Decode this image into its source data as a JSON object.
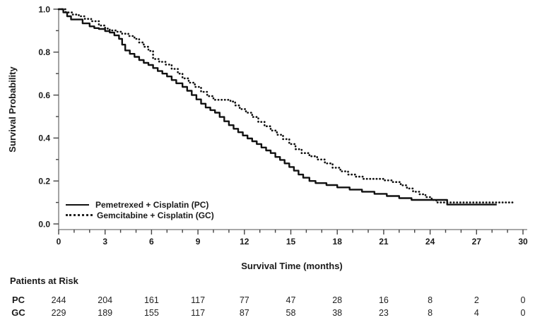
{
  "figure": {
    "background": "#ffffff",
    "text_color": "#1a1a1a",
    "axis_line_color": "#8c8c8c",
    "tick_color": "#444444",
    "curve_color": "#111111"
  },
  "chart_data": {
    "type": "line",
    "subtype": "kaplan-meier-step",
    "title": "",
    "xlabel": "Survival Time (months)",
    "ylabel": "Survival Probability",
    "xlim": [
      0,
      30
    ],
    "ylim": [
      0.0,
      1.0
    ],
    "x_major_ticks": [
      0,
      3,
      6,
      9,
      12,
      15,
      18,
      21,
      24,
      27,
      30
    ],
    "x_minor_tick_step": 1,
    "y_major_ticks": [
      0.0,
      0.2,
      0.4,
      0.6,
      0.8,
      1.0
    ],
    "y_minor_ticks": [
      0.1,
      0.3,
      0.5,
      0.7,
      0.9
    ],
    "grid": false,
    "legend_position": "inside-bottom-left",
    "series": [
      {
        "name": "Pemetrexed + Cisplatin (PC)",
        "short": "PC",
        "line_style": "solid",
        "color": "#111111",
        "step_points": [
          [
            0,
            1.0
          ],
          [
            0.3,
            0.985
          ],
          [
            0.55,
            0.967
          ],
          [
            0.8,
            0.952
          ],
          [
            1.55,
            0.934
          ],
          [
            2.0,
            0.92
          ],
          [
            2.3,
            0.912
          ],
          [
            2.6,
            0.908
          ],
          [
            3.0,
            0.898
          ],
          [
            3.3,
            0.891
          ],
          [
            3.6,
            0.878
          ],
          [
            3.9,
            0.862
          ],
          [
            4.1,
            0.835
          ],
          [
            4.3,
            0.808
          ],
          [
            4.6,
            0.792
          ],
          [
            4.9,
            0.778
          ],
          [
            5.2,
            0.763
          ],
          [
            5.5,
            0.75
          ],
          [
            5.8,
            0.74
          ],
          [
            6.1,
            0.726
          ],
          [
            6.4,
            0.712
          ],
          [
            6.7,
            0.7
          ],
          [
            7.0,
            0.687
          ],
          [
            7.3,
            0.67
          ],
          [
            7.6,
            0.655
          ],
          [
            8.0,
            0.638
          ],
          [
            8.3,
            0.62
          ],
          [
            8.6,
            0.6
          ],
          [
            8.9,
            0.58
          ],
          [
            9.2,
            0.56
          ],
          [
            9.5,
            0.542
          ],
          [
            9.8,
            0.53
          ],
          [
            10.1,
            0.518
          ],
          [
            10.4,
            0.498
          ],
          [
            10.7,
            0.478
          ],
          [
            11.0,
            0.46
          ],
          [
            11.3,
            0.443
          ],
          [
            11.6,
            0.427
          ],
          [
            11.9,
            0.412
          ],
          [
            12.2,
            0.398
          ],
          [
            12.5,
            0.385
          ],
          [
            12.8,
            0.372
          ],
          [
            13.1,
            0.356
          ],
          [
            13.4,
            0.342
          ],
          [
            13.7,
            0.33
          ],
          [
            14.0,
            0.312
          ],
          [
            14.3,
            0.298
          ],
          [
            14.6,
            0.282
          ],
          [
            14.9,
            0.265
          ],
          [
            15.2,
            0.248
          ],
          [
            15.5,
            0.23
          ],
          [
            15.8,
            0.215
          ],
          [
            16.2,
            0.2
          ],
          [
            16.6,
            0.19
          ],
          [
            17.3,
            0.181
          ],
          [
            18.0,
            0.17
          ],
          [
            18.8,
            0.16
          ],
          [
            19.6,
            0.15
          ],
          [
            20.4,
            0.14
          ],
          [
            21.2,
            0.13
          ],
          [
            22.0,
            0.12
          ],
          [
            22.8,
            0.112
          ],
          [
            25.1,
            0.09
          ],
          [
            28.3,
            0.09
          ]
        ]
      },
      {
        "name": "Gemcitabine + Cisplatin (GC)",
        "short": "GC",
        "line_style": "dotted",
        "color": "#111111",
        "step_points": [
          [
            0,
            1.0
          ],
          [
            0.45,
            0.985
          ],
          [
            0.9,
            0.975
          ],
          [
            1.3,
            0.967
          ],
          [
            1.7,
            0.955
          ],
          [
            2.1,
            0.944
          ],
          [
            2.6,
            0.924
          ],
          [
            3.0,
            0.91
          ],
          [
            3.3,
            0.901
          ],
          [
            3.7,
            0.895
          ],
          [
            4.1,
            0.886
          ],
          [
            4.5,
            0.875
          ],
          [
            4.9,
            0.862
          ],
          [
            5.2,
            0.845
          ],
          [
            5.5,
            0.825
          ],
          [
            5.8,
            0.806
          ],
          [
            6.1,
            0.768
          ],
          [
            6.5,
            0.755
          ],
          [
            6.9,
            0.742
          ],
          [
            7.3,
            0.722
          ],
          [
            7.7,
            0.7
          ],
          [
            8.0,
            0.678
          ],
          [
            8.4,
            0.658
          ],
          [
            8.8,
            0.638
          ],
          [
            9.2,
            0.615
          ],
          [
            9.6,
            0.595
          ],
          [
            10.0,
            0.578
          ],
          [
            11.1,
            0.57
          ],
          [
            11.4,
            0.552
          ],
          [
            11.7,
            0.535
          ],
          [
            12.1,
            0.518
          ],
          [
            12.5,
            0.498
          ],
          [
            12.9,
            0.475
          ],
          [
            13.3,
            0.455
          ],
          [
            13.7,
            0.435
          ],
          [
            14.1,
            0.415
          ],
          [
            14.5,
            0.395
          ],
          [
            14.9,
            0.372
          ],
          [
            15.3,
            0.348
          ],
          [
            15.7,
            0.33
          ],
          [
            16.2,
            0.315
          ],
          [
            16.7,
            0.3
          ],
          [
            17.2,
            0.282
          ],
          [
            17.7,
            0.262
          ],
          [
            18.2,
            0.245
          ],
          [
            18.7,
            0.23
          ],
          [
            19.2,
            0.22
          ],
          [
            19.7,
            0.21
          ],
          [
            21.0,
            0.203
          ],
          [
            21.6,
            0.195
          ],
          [
            22.1,
            0.18
          ],
          [
            22.5,
            0.165
          ],
          [
            22.9,
            0.15
          ],
          [
            23.3,
            0.138
          ],
          [
            23.7,
            0.125
          ],
          [
            24.1,
            0.112
          ],
          [
            24.4,
            0.1
          ],
          [
            29.4,
            0.1
          ]
        ]
      }
    ],
    "risk_table": {
      "header": "Patients at Risk",
      "months": [
        0,
        3,
        6,
        9,
        12,
        15,
        18,
        21,
        24,
        27,
        30
      ],
      "rows": [
        {
          "label": "PC",
          "counts": [
            244,
            204,
            161,
            117,
            77,
            47,
            28,
            16,
            8,
            2,
            0
          ]
        },
        {
          "label": "GC",
          "counts": [
            229,
            189,
            155,
            117,
            87,
            58,
            38,
            23,
            8,
            4,
            0
          ]
        }
      ]
    }
  }
}
